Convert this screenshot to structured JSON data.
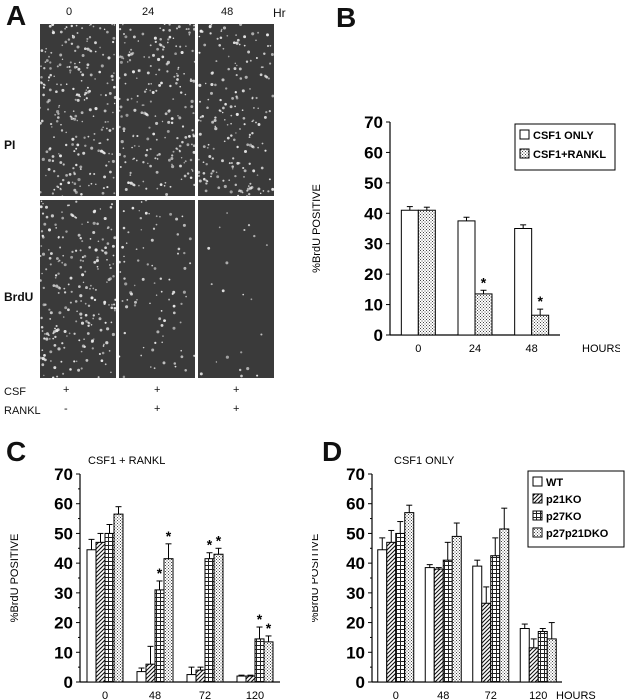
{
  "panel_a": {
    "letter": "A",
    "time_labels": [
      "0",
      "24",
      "48"
    ],
    "time_unit": "Hr",
    "row_labels": [
      "PI",
      "BrdU"
    ],
    "conditions": {
      "csf_label": "CSF",
      "rankl_label": "RANKL",
      "csf_values": [
        "+",
        "+",
        "+"
      ],
      "rankl_values": [
        "-",
        "+",
        "+"
      ]
    },
    "cell_density": {
      "PI": [
        0.95,
        0.85,
        0.75
      ],
      "BrdU": [
        0.9,
        0.35,
        0.08
      ]
    }
  },
  "panel_b_letter": "B",
  "panel_c_letter": "C",
  "panel_d_letter": "D",
  "chart_data": [
    {
      "id": "B",
      "type": "bar",
      "title": "",
      "xlabel": "HOURS",
      "ylabel": "%BrdU POSITIVE",
      "ylim": [
        0,
        70
      ],
      "yticks": [
        0,
        10,
        20,
        30,
        40,
        50,
        60,
        70
      ],
      "categories": [
        "0",
        "24",
        "48"
      ],
      "legend": "top-right",
      "series": [
        {
          "name": "CSF1 ONLY",
          "pattern": "white",
          "values": [
            41,
            37.5,
            35
          ],
          "errors": [
            1.2,
            1.2,
            1.2
          ],
          "stars": [
            false,
            false,
            false
          ]
        },
        {
          "name": "CSF1+RANKL",
          "pattern": "dots",
          "values": [
            41,
            13.5,
            6.5
          ],
          "errors": [
            1,
            1.2,
            2
          ],
          "stars": [
            false,
            true,
            true
          ]
        }
      ]
    },
    {
      "id": "C",
      "type": "bar",
      "title": "CSF1 + RANKL",
      "xlabel": "",
      "ylabel": "%BrdU POSITIVE",
      "ylim": [
        0,
        70
      ],
      "yticks": [
        0,
        5,
        10,
        15,
        20,
        25,
        30,
        35,
        40,
        45,
        50,
        55,
        60,
        65,
        70
      ],
      "categories": [
        "0",
        "48",
        "72",
        "120"
      ],
      "series": [
        {
          "name": "WT",
          "pattern": "white",
          "values": [
            44.5,
            3.5,
            2.5,
            2
          ],
          "errors": [
            3.5,
            1.2,
            2.5,
            0.3
          ],
          "stars": [
            false,
            false,
            false,
            false
          ]
        },
        {
          "name": "p21KO",
          "pattern": "diag",
          "values": [
            47,
            6,
            4,
            2
          ],
          "errors": [
            3,
            6,
            1,
            0.3
          ],
          "stars": [
            false,
            false,
            false,
            false
          ]
        },
        {
          "name": "p27KO",
          "pattern": "grid",
          "values": [
            50,
            31,
            41.5,
            14.5
          ],
          "errors": [
            3,
            3,
            2,
            4
          ],
          "stars": [
            false,
            true,
            true,
            true
          ]
        },
        {
          "name": "p27p21DKO",
          "pattern": "dots",
          "values": [
            56.5,
            41.5,
            43,
            13.5
          ],
          "errors": [
            2.5,
            5,
            2,
            2
          ],
          "stars": [
            false,
            true,
            true,
            true
          ]
        }
      ]
    },
    {
      "id": "D",
      "type": "bar",
      "title": "CSF1 ONLY",
      "xlabel": "HOURS",
      "ylabel": "%BrdU POSITIVE",
      "ylim": [
        0,
        70
      ],
      "yticks": [
        0,
        5,
        10,
        15,
        20,
        25,
        30,
        35,
        40,
        45,
        50,
        55,
        60,
        65,
        70
      ],
      "categories": [
        "0",
        "48",
        "72",
        "120"
      ],
      "legend": "top-right",
      "series": [
        {
          "name": "WT",
          "pattern": "white",
          "values": [
            44.5,
            38.5,
            39,
            18
          ],
          "errors": [
            4,
            1,
            2,
            1.5
          ],
          "stars": [
            false,
            false,
            false,
            false
          ]
        },
        {
          "name": "p21KO",
          "pattern": "diag",
          "values": [
            47,
            38,
            26.5,
            11.5
          ],
          "errors": [
            4,
            0.5,
            5.5,
            3
          ],
          "stars": [
            false,
            false,
            false,
            false
          ]
        },
        {
          "name": "p27KO",
          "pattern": "grid",
          "values": [
            50,
            41,
            42.5,
            17
          ],
          "errors": [
            4,
            6,
            6,
            1
          ],
          "stars": [
            false,
            false,
            false,
            false
          ]
        },
        {
          "name": "p27p21DKO",
          "pattern": "dots",
          "values": [
            57,
            49,
            51.5,
            14.5
          ],
          "errors": [
            2.5,
            4.5,
            7,
            5.5
          ],
          "stars": [
            false,
            false,
            false,
            false
          ]
        }
      ]
    }
  ]
}
